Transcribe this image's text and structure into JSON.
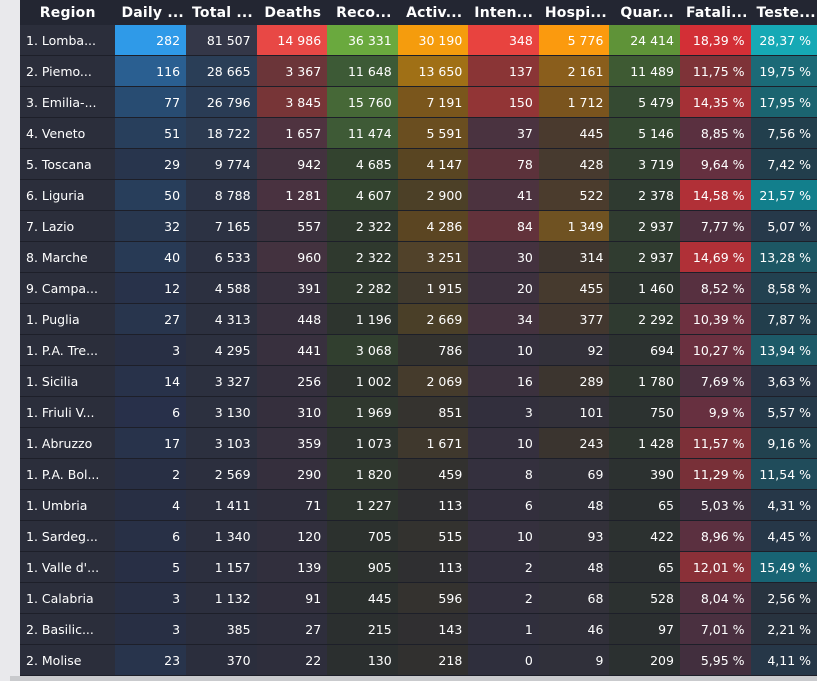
{
  "columns": [
    "Region",
    "Daily ...",
    "Total ...",
    "Deaths",
    "Reco...",
    "Activ...",
    "Inten...",
    "Hospi...",
    "Quar...",
    "Fatali...",
    "Teste..."
  ],
  "rows": [
    {
      "cells": [
        "1. Lomba...",
        "282",
        "81 507",
        "14 986",
        "36 331",
        "30 190",
        "348",
        "5 776",
        "24 414",
        "18,39 %",
        "28,37 %"
      ],
      "bg": [
        "#2b2e3b",
        "#2f9ae8",
        "#343748",
        "#e84845",
        "#6aa93e",
        "#f59c0d",
        "#e8433f",
        "#fb9a0e",
        "#5f9338",
        "#d32f36",
        "#16a9b5"
      ],
      "fg": [
        "#fff",
        "#ffffff",
        "#fff",
        "#ffffff",
        "#ffffff",
        "#ffffff",
        "#ffffff",
        "#ffffff",
        "#ffffff",
        "#ffffff",
        "#ffffff"
      ]
    },
    {
      "cells": [
        "2. Piemo...",
        "116",
        "28 665",
        "3 367",
        "11 648",
        "13 650",
        "137",
        "2 161",
        "11 489",
        "11,75 %",
        "19,75 %"
      ],
      "bg": [
        "#2b2e3b",
        "#2a5f91",
        "#2a3e57",
        "#6b3539",
        "#3d5a36",
        "#a07016",
        "#8a3536",
        "#8a5e1c",
        "#3e5a33",
        "#7e3338",
        "#1b6a77"
      ],
      "fg": [
        "#fff",
        "#fff",
        "#fff",
        "#fff",
        "#fff",
        "#fff",
        "#fff",
        "#fff",
        "#fff",
        "#fff",
        "#fff"
      ]
    },
    {
      "cells": [
        "3. Emilia-...",
        "77",
        "26 796",
        "3 845",
        "15 760",
        "7 191",
        "150",
        "1 712",
        "5 479",
        "14,35 %",
        "17,95 %"
      ],
      "bg": [
        "#2b2e3b",
        "#284c72",
        "#2a3c55",
        "#773537",
        "#466837",
        "#7a561c",
        "#923536",
        "#7a541e",
        "#354a32",
        "#a53036",
        "#1b6470"
      ],
      "fg": [
        "#fff",
        "#fff",
        "#fff",
        "#fff",
        "#fff",
        "#fff",
        "#fff",
        "#fff",
        "#fff",
        "#fff",
        "#fff"
      ]
    },
    {
      "cells": [
        "4. Veneto",
        "51",
        "18 722",
        "1 657",
        "11 474",
        "5 591",
        "37",
        "445",
        "5 146",
        "8,85 %",
        "7,56 %"
      ],
      "bg": [
        "#2b2e3b",
        "#283f5c",
        "#2c3a50",
        "#4f3340",
        "#3e5a36",
        "#6a4e20",
        "#4a3340",
        "#4a3a2e",
        "#344831",
        "#5a3040",
        "#223f4d"
      ],
      "fg": [
        "#fff",
        "#fff",
        "#fff",
        "#fff",
        "#fff",
        "#fff",
        "#fff",
        "#fff",
        "#fff",
        "#fff",
        "#fff"
      ]
    },
    {
      "cells": [
        "5. Toscana",
        "29",
        "9 774",
        "942",
        "4 685",
        "4 147",
        "78",
        "428",
        "3 719",
        "9,64 %",
        "7,42 %"
      ],
      "bg": [
        "#2b2e3b",
        "#28354d",
        "#2c3446",
        "#43323f",
        "#33432f",
        "#594522",
        "#5c323b",
        "#473a2f",
        "#313f30",
        "#653040",
        "#223e4c"
      ],
      "fg": [
        "#fff",
        "#fff",
        "#fff",
        "#fff",
        "#fff",
        "#fff",
        "#fff",
        "#fff",
        "#fff",
        "#fff",
        "#fff"
      ]
    },
    {
      "cells": [
        "6. Liguria",
        "50",
        "8 788",
        "1 281",
        "4 607",
        "2 900",
        "41",
        "522",
        "2 378",
        "14,58 %",
        "21,57 %"
      ],
      "bg": [
        "#2b2e3b",
        "#283e5b",
        "#2c3345",
        "#493240",
        "#33432f",
        "#4c4027",
        "#4c333f",
        "#4b3c2d",
        "#2f3a30",
        "#b13037",
        "#127f8c"
      ],
      "fg": [
        "#fff",
        "#fff",
        "#fff",
        "#fff",
        "#fff",
        "#fff",
        "#fff",
        "#fff",
        "#fff",
        "#fff",
        "#fff"
      ]
    },
    {
      "cells": [
        "7. Lazio",
        "32",
        "7 165",
        "557",
        "2 322",
        "4 286",
        "84",
        "1 349",
        "2 937",
        "7,77 %",
        "5,07 %"
      ],
      "bg": [
        "#2b2e3b",
        "#28374f",
        "#2c3243",
        "#3b313e",
        "#2f392e",
        "#5b4522",
        "#62323b",
        "#6f5222",
        "#303c30",
        "#4e3040",
        "#26394a"
      ],
      "fg": [
        "#fff",
        "#fff",
        "#fff",
        "#fff",
        "#fff",
        "#fff",
        "#fff",
        "#fff",
        "#fff",
        "#fff",
        "#fff"
      ]
    },
    {
      "cells": [
        "8. Marche",
        "40",
        "6 533",
        "960",
        "2 322",
        "3 251",
        "30",
        "314",
        "2 937",
        "14,69 %",
        "13,28 %"
      ],
      "bg": [
        "#2b2e3b",
        "#283a55",
        "#2c3142",
        "#43323f",
        "#2f392e",
        "#51422a",
        "#44323f",
        "#3f362f",
        "#303c30",
        "#b03037",
        "#1d5764"
      ],
      "fg": [
        "#fff",
        "#fff",
        "#fff",
        "#fff",
        "#fff",
        "#fff",
        "#fff",
        "#fff",
        "#fff",
        "#fff",
        "#fff"
      ]
    },
    {
      "cells": [
        "9. Campa...",
        "12",
        "4 588",
        "391",
        "2 282",
        "1 915",
        "20",
        "455",
        "1 460",
        "8,52 %",
        "8,58 %"
      ],
      "bg": [
        "#2b2e3b",
        "#28324a",
        "#2c3040",
        "#37303e",
        "#2f392e",
        "#413a2e",
        "#3d313e",
        "#463a2e",
        "#2d352f",
        "#573040",
        "#224150"
      ],
      "fg": [
        "#fff",
        "#fff",
        "#fff",
        "#fff",
        "#fff",
        "#fff",
        "#fff",
        "#fff",
        "#fff",
        "#fff",
        "#fff"
      ]
    },
    {
      "cells": [
        "1. Puglia",
        "27",
        "4 313",
        "448",
        "1 196",
        "2 669",
        "34",
        "377",
        "2 292",
        "10,39 %",
        "7,87 %"
      ],
      "bg": [
        "#2b2e3b",
        "#28354d",
        "#2c303f",
        "#38303e",
        "#2d342e",
        "#4a3f28",
        "#44323f",
        "#42372f",
        "#2f3a30",
        "#6e3040",
        "#223e4c"
      ],
      "fg": [
        "#fff",
        "#fff",
        "#fff",
        "#fff",
        "#fff",
        "#fff",
        "#fff",
        "#fff",
        "#fff",
        "#fff",
        "#fff"
      ]
    },
    {
      "cells": [
        "1. P.A. Tre...",
        "3",
        "4 295",
        "441",
        "3 068",
        "786",
        "10",
        "92",
        "694",
        "10,27 %",
        "13,94 %"
      ],
      "bg": [
        "#2b2e3b",
        "#282f44",
        "#2c303f",
        "#38303e",
        "#313f2f",
        "#33322f",
        "#35303e",
        "#33313a",
        "#2c3230",
        "#6b3040",
        "#1d5a68"
      ],
      "fg": [
        "#fff",
        "#fff",
        "#fff",
        "#fff",
        "#fff",
        "#fff",
        "#fff",
        "#fff",
        "#fff",
        "#fff",
        "#fff"
      ]
    },
    {
      "cells": [
        "1. Sicilia",
        "14",
        "3 327",
        "256",
        "1 002",
        "2 069",
        "16",
        "289",
        "1 780",
        "7,69 %",
        "3,63 %"
      ],
      "bg": [
        "#2b2e3b",
        "#28324a",
        "#2c303f",
        "#342f3d",
        "#2d332e",
        "#453b2c",
        "#3b313e",
        "#3c352f",
        "#2d362f",
        "#4c3040",
        "#283546"
      ],
      "fg": [
        "#fff",
        "#fff",
        "#fff",
        "#fff",
        "#fff",
        "#fff",
        "#fff",
        "#fff",
        "#fff",
        "#fff",
        "#fff"
      ]
    },
    {
      "cells": [
        "1. Friuli V...",
        "6",
        "3 130",
        "310",
        "1 969",
        "851",
        "3",
        "101",
        "750",
        "9,9 %",
        "5,57 %"
      ],
      "bg": [
        "#2b2e3b",
        "#28304a",
        "#2c303f",
        "#352f3d",
        "#2f382e",
        "#35332f",
        "#322f3d",
        "#33313a",
        "#2c3230",
        "#673040",
        "#253a4a"
      ],
      "fg": [
        "#fff",
        "#fff",
        "#fff",
        "#fff",
        "#fff",
        "#fff",
        "#fff",
        "#fff",
        "#fff",
        "#fff",
        "#fff"
      ]
    },
    {
      "cells": [
        "1. Abruzzo",
        "17",
        "3 103",
        "359",
        "1 073",
        "1 671",
        "10",
        "243",
        "1 428",
        "11,57 %",
        "9,16 %"
      ],
      "bg": [
        "#2b2e3b",
        "#28334b",
        "#2c303f",
        "#36303e",
        "#2d342e",
        "#3f382d",
        "#35303e",
        "#3a342f",
        "#2d352f",
        "#7d3038",
        "#22424f"
      ],
      "fg": [
        "#fff",
        "#fff",
        "#fff",
        "#fff",
        "#fff",
        "#fff",
        "#fff",
        "#fff",
        "#fff",
        "#fff",
        "#fff"
      ]
    },
    {
      "cells": [
        "1. P.A. Bol...",
        "2",
        "2 569",
        "290",
        "1 820",
        "459",
        "8",
        "69",
        "390",
        "11,29 %",
        "11,54 %"
      ],
      "bg": [
        "#2b2e3b",
        "#282f44",
        "#2c2f3e",
        "#352f3d",
        "#2f372e",
        "#32312f",
        "#34303e",
        "#32313a",
        "#2c3130",
        "#783038",
        "#204c5b"
      ],
      "fg": [
        "#fff",
        "#fff",
        "#fff",
        "#fff",
        "#fff",
        "#fff",
        "#fff",
        "#fff",
        "#fff",
        "#fff",
        "#fff"
      ]
    },
    {
      "cells": [
        "1. Umbria",
        "4",
        "1 411",
        "71",
        "1 227",
        "113",
        "6",
        "48",
        "65",
        "5,03 %",
        "4,31 %"
      ],
      "bg": [
        "#2b2e3b",
        "#282f44",
        "#2c2f3e",
        "#2f2e3c",
        "#2d352e",
        "#2f2f31",
        "#332f3d",
        "#31303a",
        "#2b2f30",
        "#3d2f3e",
        "#263748"
      ],
      "fg": [
        "#fff",
        "#fff",
        "#fff",
        "#fff",
        "#fff",
        "#fff",
        "#fff",
        "#fff",
        "#fff",
        "#fff",
        "#fff"
      ]
    },
    {
      "cells": [
        "1. Sardeg...",
        "6",
        "1 340",
        "120",
        "705",
        "515",
        "10",
        "93",
        "422",
        "8,96 %",
        "4,45 %"
      ],
      "bg": [
        "#2b2e3b",
        "#283046",
        "#2c2f3e",
        "#312f3d",
        "#2c312e",
        "#33322f",
        "#35303e",
        "#33313a",
        "#2c3130",
        "#5b3040",
        "#263748"
      ],
      "fg": [
        "#fff",
        "#fff",
        "#fff",
        "#fff",
        "#fff",
        "#fff",
        "#fff",
        "#fff",
        "#fff",
        "#fff",
        "#fff"
      ]
    },
    {
      "cells": [
        "1. Valle d'...",
        "5",
        "1 157",
        "139",
        "905",
        "113",
        "2",
        "48",
        "65",
        "12,01 %",
        "15,49 %"
      ],
      "bg": [
        "#2b2e3b",
        "#282f45",
        "#2c2f3e",
        "#312f3d",
        "#2c322e",
        "#2f2f31",
        "#322f3d",
        "#31303a",
        "#2b2f30",
        "#8a3038",
        "#186474"
      ],
      "fg": [
        "#fff",
        "#fff",
        "#fff",
        "#fff",
        "#fff",
        "#fff",
        "#fff",
        "#fff",
        "#fff",
        "#fff",
        "#fff"
      ]
    },
    {
      "cells": [
        "1. Calabria",
        "3",
        "1 132",
        "91",
        "445",
        "596",
        "2",
        "68",
        "528",
        "8,04 %",
        "2,56 %"
      ],
      "bg": [
        "#2b2e3b",
        "#282f44",
        "#2c2f3e",
        "#302e3c",
        "#2b302e",
        "#34322f",
        "#322f3d",
        "#32313a",
        "#2c3130",
        "#513040",
        "#28333f"
      ],
      "fg": [
        "#fff",
        "#fff",
        "#fff",
        "#fff",
        "#fff",
        "#fff",
        "#fff",
        "#fff",
        "#fff",
        "#fff",
        "#fff"
      ]
    },
    {
      "cells": [
        "2. Basilic...",
        "3",
        "385",
        "27",
        "215",
        "143",
        "1",
        "46",
        "97",
        "7,01 %",
        "2,21 %"
      ],
      "bg": [
        "#2b2e3b",
        "#282f44",
        "#2b2e3d",
        "#2e2e3c",
        "#2b2f2f",
        "#302f31",
        "#302f3d",
        "#31303a",
        "#2b2f30",
        "#4a3040",
        "#28333f"
      ],
      "fg": [
        "#fff",
        "#fff",
        "#fff",
        "#fff",
        "#fff",
        "#fff",
        "#fff",
        "#fff",
        "#fff",
        "#fff",
        "#fff"
      ]
    },
    {
      "cells": [
        "2. Molise",
        "23",
        "370",
        "22",
        "130",
        "218",
        "0",
        "9",
        "209",
        "5,95 %",
        "4,11 %"
      ],
      "bg": [
        "#2b2e3b",
        "#28344c",
        "#2b2e3d",
        "#2e2e3c",
        "#2b2f2f",
        "#31302f",
        "#2f2f3d",
        "#30303a",
        "#2b3030",
        "#422f3e",
        "#263748"
      ],
      "fg": [
        "#fff",
        "#fff",
        "#fff",
        "#fff",
        "#fff",
        "#fff",
        "#fff",
        "#fff",
        "#fff",
        "#fff",
        "#fff"
      ]
    }
  ]
}
